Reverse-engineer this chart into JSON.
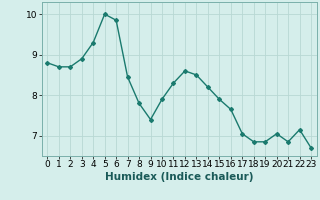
{
  "x": [
    0,
    1,
    2,
    3,
    4,
    5,
    6,
    7,
    8,
    9,
    10,
    11,
    12,
    13,
    14,
    15,
    16,
    17,
    18,
    19,
    20,
    21,
    22,
    23
  ],
  "y": [
    8.8,
    8.7,
    8.7,
    8.9,
    9.3,
    10.0,
    9.85,
    8.45,
    7.8,
    7.4,
    7.9,
    8.3,
    8.6,
    8.5,
    8.2,
    7.9,
    7.65,
    7.05,
    6.85,
    6.85,
    7.05,
    6.85,
    7.15,
    6.7
  ],
  "line_color": "#1a7a6e",
  "marker": "D",
  "marker_size": 2.0,
  "xlabel": "Humidex (Indice chaleur)",
  "xlim": [
    -0.5,
    23.5
  ],
  "ylim": [
    6.5,
    10.3
  ],
  "yticks": [
    7,
    8,
    9,
    10
  ],
  "xticks": [
    0,
    1,
    2,
    3,
    4,
    5,
    6,
    7,
    8,
    9,
    10,
    11,
    12,
    13,
    14,
    15,
    16,
    17,
    18,
    19,
    20,
    21,
    22,
    23
  ],
  "bg_color": "#d5eeeb",
  "grid_color": "#b8d8d4",
  "xlabel_fontsize": 7.5,
  "tick_fontsize": 6.5,
  "linewidth": 1.0
}
